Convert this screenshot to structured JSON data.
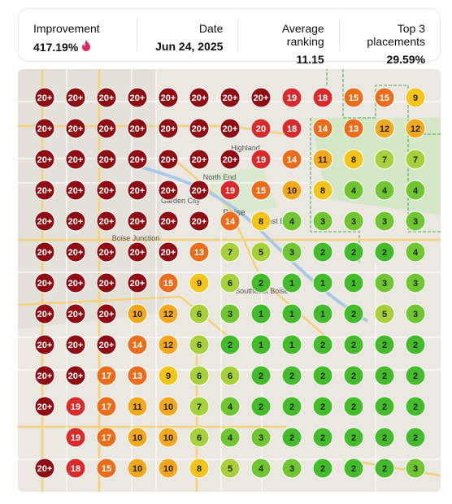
{
  "stats": [
    {
      "label": "Improvement",
      "value": "417.19%"
    },
    {
      "label": "Date",
      "value": "Jun 24, 2025"
    },
    {
      "label": "Average ranking",
      "value": "11.15"
    },
    {
      "label": "Top 3 placements",
      "value": "29.59%"
    }
  ],
  "map_labels": [
    "Highland",
    "North End",
    "Garden City",
    "Boise",
    "East End",
    "Boise Junction",
    "Southeast Boise"
  ],
  "grid": [
    [
      "20+",
      "20+",
      "20+",
      "20+",
      "20+",
      "20+",
      "20+",
      "20+",
      "19",
      "18",
      "15",
      "15",
      "9"
    ],
    [
      "20+",
      "20+",
      "20+",
      "20+",
      "20+",
      "20+",
      "20+",
      "20",
      "18",
      "14",
      "13",
      "12",
      "12"
    ],
    [
      "20+",
      "20+",
      "20+",
      "20+",
      "20+",
      "20+",
      "20+",
      "19",
      "14",
      "11",
      "8",
      "7",
      "7"
    ],
    [
      "20+",
      "20+",
      "20+",
      "20+",
      "20+",
      "20+",
      "19",
      "15",
      "10",
      "8",
      "4",
      "4",
      "4"
    ],
    [
      "20+",
      "20+",
      "20+",
      "20+",
      "20+",
      "20+",
      "14",
      "8",
      "4",
      "3",
      "3",
      "3",
      "3"
    ],
    [
      "20+",
      "20+",
      "20+",
      "20+",
      "20+",
      "13",
      "7",
      "5",
      "3",
      "2",
      "2",
      "2",
      "4"
    ],
    [
      "20+",
      "20+",
      "20+",
      "20+",
      "15",
      "9",
      "6",
      "2",
      "1",
      "1",
      "1",
      "3",
      "3"
    ],
    [
      "20+",
      "20+",
      "20+",
      "10",
      "12",
      "6",
      "3",
      "1",
      "1",
      "1",
      "2",
      "5",
      "3"
    ],
    [
      "20+",
      "20+",
      "20+",
      "14",
      "12",
      "6",
      "2",
      "1",
      "1",
      "2",
      "2",
      "2",
      "2"
    ],
    [
      "20+",
      "20+",
      "17",
      "13",
      "9",
      "6",
      "6",
      "2",
      "2",
      "2",
      "2",
      "2",
      "2"
    ],
    [
      "20+",
      "19",
      "17",
      "11",
      "10",
      "7",
      "4",
      "2",
      "2",
      "2",
      "2",
      "2",
      "2"
    ],
    [
      null,
      "19",
      "17",
      "10",
      "10",
      "6",
      "4",
      "3",
      "2",
      "2",
      "2",
      "2",
      "2"
    ],
    [
      "20+",
      "18",
      "15",
      "10",
      "10",
      "8",
      "5",
      "4",
      "3",
      "2",
      "2",
      "2",
      "3"
    ]
  ]
}
